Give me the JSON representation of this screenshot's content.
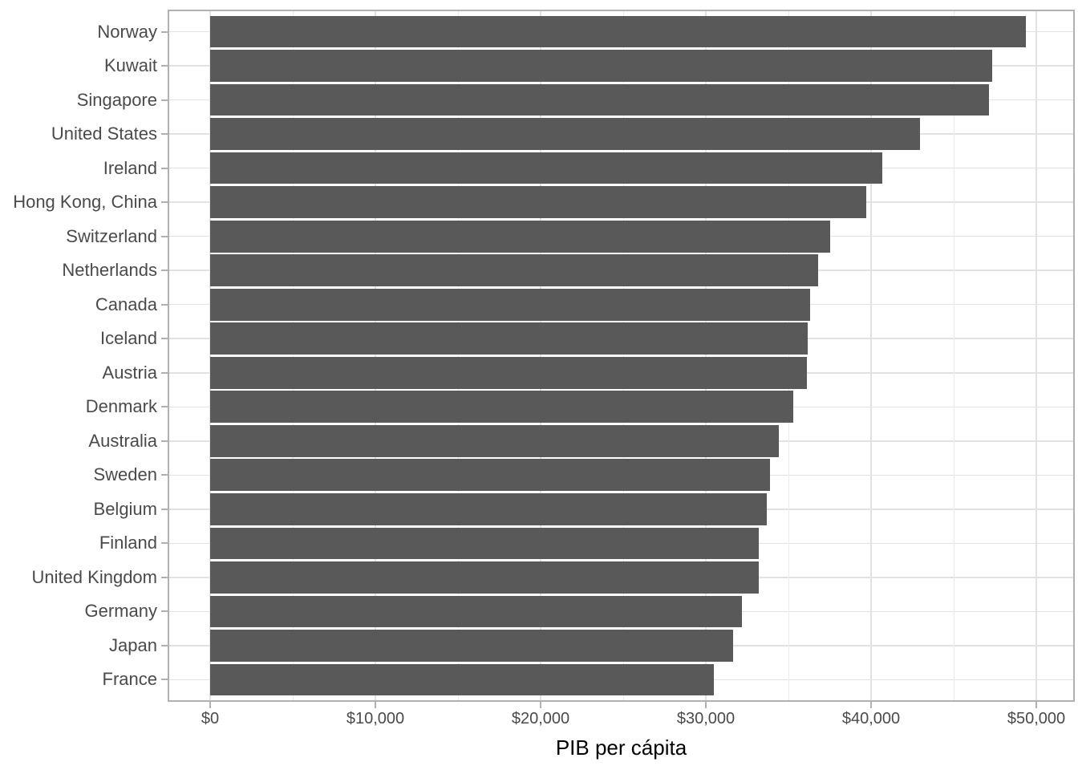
{
  "chart_data": {
    "type": "bar",
    "orientation": "horizontal",
    "title": "",
    "xlabel": "PIB per cápita",
    "ylabel": "",
    "categories": [
      "Norway",
      "Kuwait",
      "Singapore",
      "United States",
      "Ireland",
      "Hong Kong, China",
      "Switzerland",
      "Netherlands",
      "Canada",
      "Iceland",
      "Austria",
      "Denmark",
      "Australia",
      "Sweden",
      "Belgium",
      "Finland",
      "United Kingdom",
      "Germany",
      "Japan",
      "France"
    ],
    "values": [
      49357.2,
      47307.0,
      47143.2,
      42951.7,
      40676.0,
      39725.0,
      37506.4,
      36797.9,
      36319.2,
      36180.8,
      36126.5,
      35278.4,
      34435.4,
      33859.7,
      33692.6,
      33207.1,
      33203.3,
      32170.4,
      31656.1,
      30470.0
    ],
    "x_ticks": [
      {
        "value": 0,
        "label": "$0"
      },
      {
        "value": 10000,
        "label": "$10,000"
      },
      {
        "value": 20000,
        "label": "$20,000"
      },
      {
        "value": 30000,
        "label": "$30,000"
      },
      {
        "value": 40000,
        "label": "$40,000"
      },
      {
        "value": 50000,
        "label": "$50,000"
      }
    ],
    "x_minor_ticks": [
      5000,
      15000,
      25000,
      35000,
      45000
    ],
    "xlim": [
      0,
      50000
    ],
    "grid": "vertical major+minor, horizontal major per category",
    "legend": "none",
    "colors": {
      "bar_fill": "#595959",
      "panel_border": "#b1b1b1",
      "grid_major": "#e2e2e2",
      "grid_minor": "#ebebeb",
      "tick_mark": "#b1b1b1",
      "axis_text": "#4a4a4a",
      "axis_title": "#000000",
      "background": "#ffffff"
    }
  }
}
